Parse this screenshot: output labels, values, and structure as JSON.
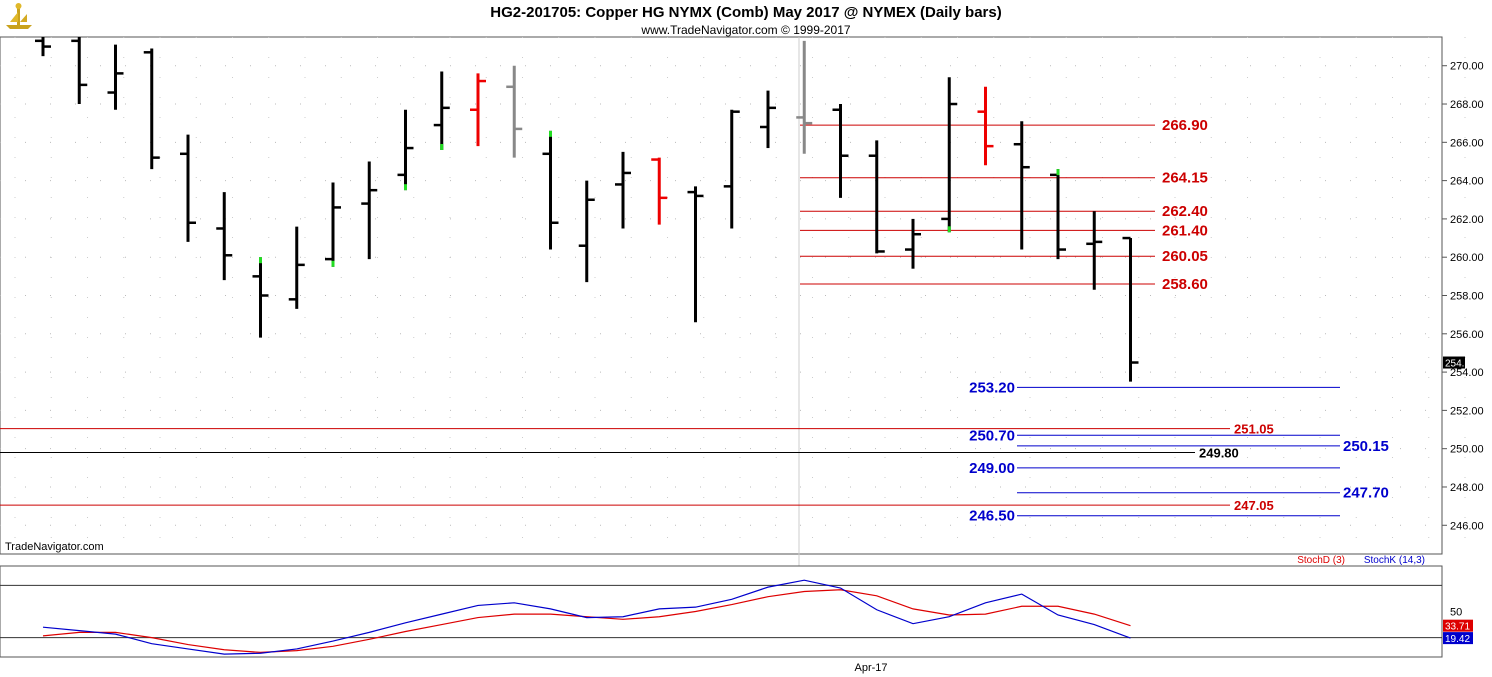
{
  "header": {
    "title": "HG2-201705:  Copper HG NYMX (Comb) May 2017 @ NYMEX  (Daily bars)",
    "subtitle": "www.TradeNavigator.com © 1999-2017"
  },
  "watermark": "TradeNavigator.com",
  "colors": {
    "bar": "#000000",
    "up": "#22dd22",
    "down": "#ee0000",
    "gray": "#888888",
    "red_line": "#cc0000",
    "blue_line": "#0000cc",
    "stoch_d": "#dd0000",
    "stoch_k": "#0000cc"
  },
  "chart_data": [
    {
      "type": "ohlc",
      "ylim": [
        244.5,
        271.5
      ],
      "y_ticks": [
        "270.00",
        "268.00",
        "266.00",
        "264.00",
        "262.00",
        "260.00",
        "258.00",
        "256.00",
        "254.00",
        "252.00",
        "250.00",
        "248.00",
        "246.00"
      ],
      "y_tick_values": [
        270,
        268,
        266,
        264,
        262,
        260,
        258,
        256,
        254,
        252,
        250,
        248,
        246
      ],
      "last_price": "254.50",
      "last_value": 254.5,
      "x_label": "Apr-17",
      "bars": [
        {
          "o": 271.3,
          "h": 271.5,
          "l": 270.5,
          "c": 271.0,
          "color": "black"
        },
        {
          "o": 271.3,
          "h": 271.5,
          "l": 268.0,
          "c": 269.0,
          "color": "black"
        },
        {
          "o": 268.6,
          "h": 271.1,
          "l": 267.7,
          "c": 269.6,
          "color": "black"
        },
        {
          "o": 270.7,
          "h": 270.9,
          "l": 264.6,
          "c": 265.2,
          "color": "black"
        },
        {
          "o": 265.4,
          "h": 266.4,
          "l": 260.8,
          "c": 261.8,
          "color": "black"
        },
        {
          "o": 261.5,
          "h": 263.4,
          "l": 258.8,
          "c": 260.1,
          "color": "black"
        },
        {
          "o": 259.0,
          "h": 260.0,
          "l": 255.8,
          "c": 258.0,
          "color": "black",
          "hi_color": "up"
        },
        {
          "o": 257.8,
          "h": 261.6,
          "l": 257.3,
          "c": 259.6,
          "color": "black"
        },
        {
          "o": 259.9,
          "h": 263.9,
          "l": 259.5,
          "c": 262.6,
          "color": "black",
          "lo_color": "up"
        },
        {
          "o": 262.8,
          "h": 265.0,
          "l": 259.9,
          "c": 263.5,
          "color": "black"
        },
        {
          "o": 264.3,
          "h": 267.7,
          "l": 263.5,
          "c": 265.7,
          "color": "black",
          "lo_color": "up"
        },
        {
          "o": 266.9,
          "h": 269.7,
          "l": 265.6,
          "c": 267.8,
          "color": "black",
          "lo_color": "up"
        },
        {
          "o": 267.7,
          "h": 269.6,
          "l": 265.8,
          "c": 269.2,
          "color": "down"
        },
        {
          "o": 268.9,
          "h": 270.0,
          "l": 265.2,
          "c": 266.7,
          "color": "gray"
        },
        {
          "o": 265.4,
          "h": 266.6,
          "l": 260.4,
          "c": 261.8,
          "color": "black",
          "hi_color": "up"
        },
        {
          "o": 260.6,
          "h": 264.0,
          "l": 258.7,
          "c": 263.0,
          "color": "black"
        },
        {
          "o": 263.8,
          "h": 265.5,
          "l": 261.5,
          "c": 264.4,
          "color": "black"
        },
        {
          "o": 265.1,
          "h": 265.2,
          "l": 261.7,
          "c": 263.1,
          "color": "down"
        },
        {
          "o": 263.4,
          "h": 263.7,
          "l": 256.6,
          "c": 263.2,
          "color": "black"
        },
        {
          "o": 263.7,
          "h": 267.7,
          "l": 261.5,
          "c": 267.6,
          "color": "black"
        },
        {
          "o": 266.8,
          "h": 268.7,
          "l": 265.7,
          "c": 267.8,
          "color": "black"
        },
        {
          "o": 267.3,
          "h": 271.3,
          "l": 265.4,
          "c": 267.0,
          "color": "gray"
        },
        {
          "o": 267.7,
          "h": 268.0,
          "l": 263.1,
          "c": 265.3,
          "color": "black"
        },
        {
          "o": 265.3,
          "h": 266.1,
          "l": 260.2,
          "c": 260.3,
          "color": "black"
        },
        {
          "o": 260.4,
          "h": 262.0,
          "l": 259.4,
          "c": 261.2,
          "color": "black"
        },
        {
          "o": 262.0,
          "h": 269.4,
          "l": 261.3,
          "c": 268.0,
          "color": "black",
          "lo_color": "up"
        },
        {
          "o": 267.6,
          "h": 268.9,
          "l": 264.8,
          "c": 265.8,
          "color": "down"
        },
        {
          "o": 265.9,
          "h": 267.1,
          "l": 260.4,
          "c": 264.7,
          "color": "black"
        },
        {
          "o": 264.3,
          "h": 264.6,
          "l": 259.9,
          "c": 260.4,
          "color": "black",
          "hi_color": "up"
        },
        {
          "o": 260.7,
          "h": 262.4,
          "l": 258.3,
          "c": 260.8,
          "color": "black"
        },
        {
          "o": 261.0,
          "h": 261.0,
          "l": 253.5,
          "c": 254.5,
          "color": "black"
        }
      ],
      "levels": [
        {
          "value": 266.9,
          "label": "266.90",
          "color": "red",
          "segment": "recent",
          "label_pos": "right"
        },
        {
          "value": 264.15,
          "label": "264.15",
          "color": "red",
          "segment": "recent",
          "label_pos": "right"
        },
        {
          "value": 262.4,
          "label": "262.40",
          "color": "red",
          "segment": "recent",
          "label_pos": "right"
        },
        {
          "value": 261.4,
          "label": "261.40",
          "color": "red",
          "segment": "recent",
          "label_pos": "right"
        },
        {
          "value": 260.05,
          "label": "260.05",
          "color": "red",
          "segment": "recent",
          "label_pos": "right"
        },
        {
          "value": 258.6,
          "label": "258.60",
          "color": "red",
          "segment": "recent",
          "label_pos": "right"
        },
        {
          "value": 253.2,
          "label": "253.20",
          "color": "blue",
          "segment": "right",
          "label_pos": "left"
        },
        {
          "value": 251.05,
          "label": "251.05",
          "color": "red",
          "segment": "full",
          "label_pos": "right"
        },
        {
          "value": 250.7,
          "label": "250.70",
          "color": "blue",
          "segment": "right",
          "label_pos": "left"
        },
        {
          "value": 250.15,
          "label": "250.15",
          "color": "blue",
          "segment": "far",
          "label_pos": "right"
        },
        {
          "value": 249.8,
          "label": "249.80",
          "color": "black",
          "segment": "full",
          "label_pos": "right"
        },
        {
          "value": 249.0,
          "label": "249.00",
          "color": "blue",
          "segment": "right",
          "label_pos": "left"
        },
        {
          "value": 247.7,
          "label": "247.70",
          "color": "blue",
          "segment": "far",
          "label_pos": "right"
        },
        {
          "value": 247.05,
          "label": "247.05",
          "color": "red",
          "segment": "full",
          "label_pos": "right"
        },
        {
          "value": 246.5,
          "label": "246.50",
          "color": "blue",
          "segment": "right",
          "label_pos": "left"
        }
      ]
    },
    {
      "type": "line",
      "ylim": [
        0,
        100
      ],
      "y_ticks": [
        "50"
      ],
      "y_tick_values": [
        50
      ],
      "series": [
        {
          "name": "StochD (3)",
          "color": "stoch_d",
          "last": "33.71",
          "values": [
            22,
            26,
            26,
            20,
            12,
            6,
            3,
            5,
            10,
            18,
            27,
            35,
            43,
            47,
            47,
            44,
            41,
            44,
            50,
            58,
            67,
            73,
            75,
            68,
            53,
            46,
            47,
            56,
            56,
            47,
            33.71
          ]
        },
        {
          "name": "StochK (14,3)",
          "color": "stoch_k",
          "last": "19.42",
          "values": [
            32,
            28,
            24,
            13,
            7,
            1,
            2,
            7,
            16,
            26,
            37,
            47,
            57,
            60,
            53,
            43,
            44,
            53,
            55,
            64,
            78,
            86,
            77,
            52,
            36,
            44,
            60,
            70,
            46,
            35,
            19.42
          ]
        }
      ]
    }
  ]
}
